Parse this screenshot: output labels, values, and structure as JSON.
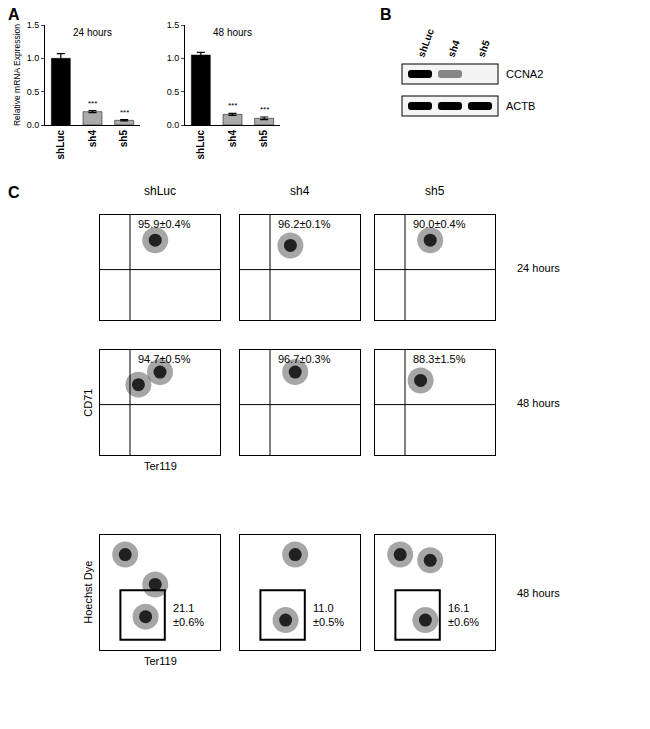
{
  "chart_data": [
    {
      "panel": "A",
      "type": "bar",
      "title": "24 hours",
      "y_label": "Relative mRNA Expression",
      "categories": [
        "shLuc",
        "sh4",
        "sh5"
      ],
      "values": [
        1.0,
        0.2,
        0.07
      ],
      "errors": [
        0.07,
        0.015,
        0.01
      ],
      "colors": [
        "#000000",
        "#aaaaaa",
        "#aaaaaa"
      ],
      "annotations": [
        null,
        "***",
        "***"
      ],
      "ylim": [
        0,
        1.5
      ],
      "yticks": [
        {
          "value": 0,
          "label": "0.0"
        },
        0.5,
        {
          "value": 1,
          "label": "1.0"
        },
        1.5
      ]
    },
    {
      "type": "bar",
      "title": "48 hours",
      "categories": [
        "shLuc",
        "sh4",
        "sh5"
      ],
      "values": [
        1.05,
        0.16,
        0.1
      ],
      "errors": [
        0.04,
        0.015,
        0.02
      ],
      "colors": [
        "#000000",
        "#aaaaaa",
        "#aaaaaa"
      ],
      "annotations": [
        null,
        "***",
        "***"
      ],
      "ylim": [
        0,
        1.5
      ],
      "yticks": [
        {
          "value": 0,
          "label": "0.0"
        },
        0.5,
        {
          "value": 1,
          "label": "1.0"
        },
        1.5
      ]
    }
  ],
  "blot": {
    "panel": "B",
    "lanes": [
      "shLuc",
      "sh4",
      "sh5"
    ],
    "rows": [
      {
        "label": "CCNA2",
        "intensity": [
          1,
          0.45,
          0
        ]
      },
      {
        "label": "ACTB",
        "intensity": [
          1,
          1,
          1
        ]
      }
    ]
  },
  "flow": {
    "panel": "C",
    "type": "scatter",
    "columns": [
      "shLuc",
      "sh4",
      "sh5"
    ],
    "xlim": [
      0,
      1
    ],
    "ylim": [
      0,
      1
    ],
    "tick_labels": false,
    "rows": [
      {
        "label": "24 hours",
        "quadrant": {
          "x": 0.25,
          "y": 0.48
        },
        "cells": [
          {
            "clusters": [
              [
                0.46,
                0.76
              ]
            ],
            "text": "95.9±0.4%"
          },
          {
            "clusters": [
              [
                0.42,
                0.71
              ]
            ],
            "text": "96.2±0.1%"
          },
          {
            "clusters": [
              [
                0.46,
                0.76
              ]
            ],
            "text": "90.0±0.4%"
          }
        ]
      },
      {
        "label": "48 hours",
        "x_label": "Ter119",
        "y_label": "CD71",
        "quadrant": {
          "x": 0.25,
          "y": 0.48
        },
        "cells": [
          {
            "clusters": [
              [
                0.32,
                0.67
              ],
              [
                0.5,
                0.79
              ]
            ],
            "text": "94.7±0.5%"
          },
          {
            "clusters": [
              [
                0.46,
                0.79
              ]
            ],
            "text": "96.7±0.3%"
          },
          {
            "clusters": [
              [
                0.38,
                0.71
              ]
            ],
            "text": "88.3±1.5%"
          }
        ]
      },
      {
        "label": "48 hours",
        "x_label": "Ter119",
        "y_label": "Hoechst Dye",
        "gate_box": {
          "x": [
            0.17,
            0.54
          ],
          "y": [
            0.09,
            0.52
          ]
        },
        "cells": [
          {
            "clusters": [
              [
                0.21,
                0.83
              ],
              [
                0.46,
                0.57
              ],
              [
                0.38,
                0.29
              ]
            ],
            "text": "21.1\n±0.6%"
          },
          {
            "clusters": [
              [
                0.46,
                0.83
              ],
              [
                0.38,
                0.26
              ]
            ],
            "text": "11.0\n±0.5%"
          },
          {
            "clusters": [
              [
                0.21,
                0.83
              ],
              [
                0.46,
                0.78
              ],
              [
                0.42,
                0.26
              ]
            ],
            "text": "16.1\n±0.6%"
          }
        ]
      }
    ]
  }
}
